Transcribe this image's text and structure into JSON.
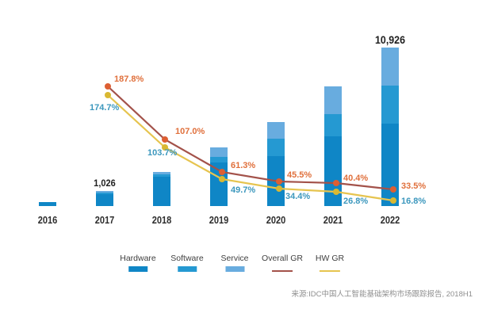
{
  "chart_data": {
    "type": "bar",
    "stacked": true,
    "title": "",
    "xlabel": "",
    "ylabel": "",
    "grid": false,
    "axes_visible": false,
    "legend_position": "bottom",
    "categories": [
      "2016",
      "2017",
      "2018",
      "2019",
      "2020",
      "2021",
      "2022"
    ],
    "series": [
      {
        "name": "Hardware",
        "color": "#0f86c6",
        "values": [
          270,
          800,
          2030,
          3005,
          3440,
          4810,
          5686
        ]
      },
      {
        "name": "Software",
        "color": "#2599d2",
        "values": [
          0,
          113,
          160,
          380,
          1200,
          1530,
          2620
        ]
      },
      {
        "name": "Service",
        "color": "#68acdf",
        "values": [
          0,
          113,
          160,
          655,
          1150,
          1910,
          2620
        ]
      }
    ],
    "bar_total_labels": [
      "",
      "1,026",
      "",
      "",
      "",
      "",
      "10,926"
    ],
    "line_series": [
      {
        "name": "Overall GR",
        "line_color": "#a3524a",
        "marker_color": "#dd5f33",
        "label_color": "#e0703c",
        "values": [
          null,
          187.8,
          107.0,
          61.3,
          45.5,
          40.4,
          33.5
        ],
        "labels": [
          "",
          "187.8%",
          "107.0%",
          "61.3%",
          "45.5%",
          "40.4%",
          "33.5%"
        ]
      },
      {
        "name": "HW GR",
        "line_color": "#e6c44f",
        "marker_color": "#d9b832",
        "label_color": "#3b97bd",
        "values": [
          null,
          174.7,
          103.7,
          49.7,
          34.4,
          26.8,
          16.8
        ],
        "labels": [
          "",
          "174.7%",
          "103.7%",
          "49.7%",
          "34.4%",
          "26.8%",
          "16.8%"
        ]
      }
    ]
  },
  "legend": {
    "items": [
      {
        "label": "Hardware",
        "type": "bar",
        "color": "#0f86c6"
      },
      {
        "label": "Software",
        "type": "bar",
        "color": "#2599d2"
      },
      {
        "label": "Service",
        "type": "bar",
        "color": "#68acdf"
      },
      {
        "label": "Overall GR",
        "type": "line",
        "color": "#a3524a"
      },
      {
        "label": "HW GR",
        "type": "line",
        "color": "#e6c44f"
      }
    ]
  },
  "source_note": "来源:IDC中国人工智能基础架构市场跟踪报告, 2018H1"
}
